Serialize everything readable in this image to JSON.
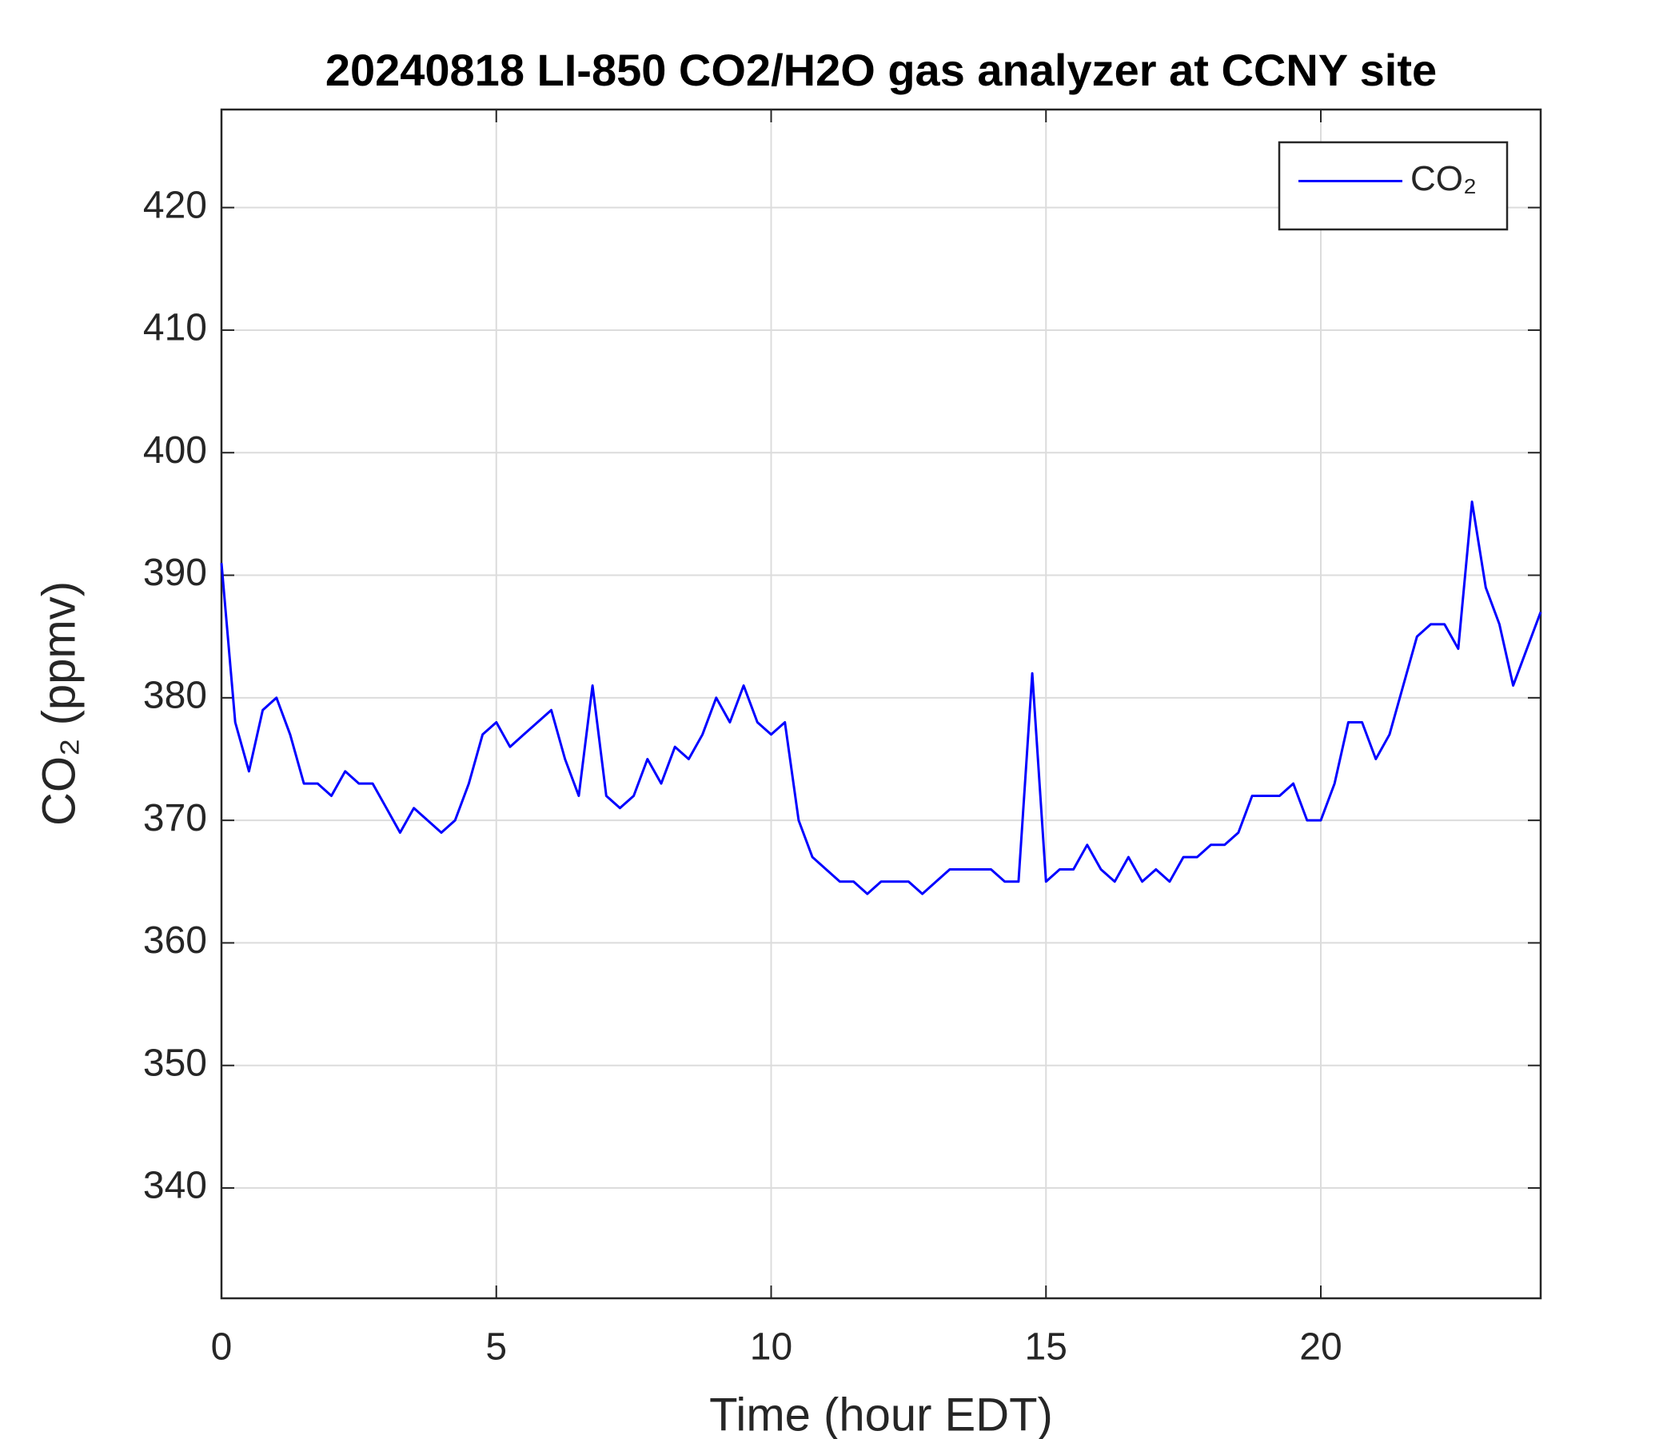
{
  "chart_data": {
    "type": "line",
    "title": "20240818 LI-850 CO2/H2O gas analyzer at CCNY site",
    "x_label": "Time (hour EDT)",
    "y_label": "CO₂ (ppmv)",
    "x": [
      0,
      0.25,
      0.5,
      0.75,
      1,
      1.25,
      1.5,
      1.75,
      2,
      2.25,
      2.5,
      2.75,
      3,
      3.25,
      3.5,
      3.75,
      4,
      4.25,
      4.5,
      4.75,
      5,
      5.25,
      5.5,
      5.75,
      6,
      6.25,
      6.5,
      6.75,
      7,
      7.25,
      7.5,
      7.75,
      8,
      8.25,
      8.5,
      8.75,
      9,
      9.25,
      9.5,
      9.75,
      10,
      10.25,
      10.5,
      10.75,
      11,
      11.25,
      11.5,
      11.75,
      12,
      12.25,
      12.5,
      12.75,
      13,
      13.25,
      13.5,
      13.75,
      14,
      14.25,
      14.5,
      14.75,
      15,
      15.25,
      15.5,
      15.75,
      16,
      16.25,
      16.5,
      16.75,
      17,
      17.25,
      17.5,
      17.75,
      18,
      18.25,
      18.5,
      18.75,
      19,
      19.25,
      19.5,
      19.75,
      20,
      20.25,
      20.5,
      20.75,
      21,
      21.25,
      21.5,
      21.75,
      22,
      22.25,
      22.5,
      22.75,
      23,
      23.25,
      23.5,
      23.75,
      24
    ],
    "series": [
      {
        "name": "CO₂",
        "color": "#0000ff",
        "values": [
          391,
          378,
          374,
          379,
          380,
          377,
          373,
          373,
          372,
          374,
          373,
          373,
          371,
          369,
          371,
          370,
          369,
          370,
          373,
          377,
          378,
          376,
          377,
          378,
          379,
          375,
          372,
          381,
          372,
          371,
          372,
          375,
          373,
          376,
          375,
          377,
          380,
          378,
          381,
          378,
          377,
          378,
          370,
          367,
          366,
          365,
          365,
          364,
          365,
          365,
          365,
          364,
          365,
          366,
          366,
          366,
          366,
          365,
          365,
          382,
          365,
          366,
          366,
          368,
          366,
          365,
          367,
          365,
          366,
          365,
          367,
          367,
          368,
          368,
          369,
          372,
          372,
          372,
          373,
          370,
          370,
          373,
          378,
          378,
          375,
          377,
          381,
          385,
          386,
          386,
          384,
          396,
          389,
          386,
          381,
          384,
          387
        ]
      }
    ],
    "xlim": [
      0,
      24
    ],
    "xticks": [
      0,
      5,
      10,
      15,
      20
    ],
    "ylim": [
      331,
      428
    ],
    "yticks": [
      340,
      350,
      360,
      370,
      380,
      390,
      400,
      410,
      420
    ],
    "grid": true,
    "legend": "upper right"
  }
}
